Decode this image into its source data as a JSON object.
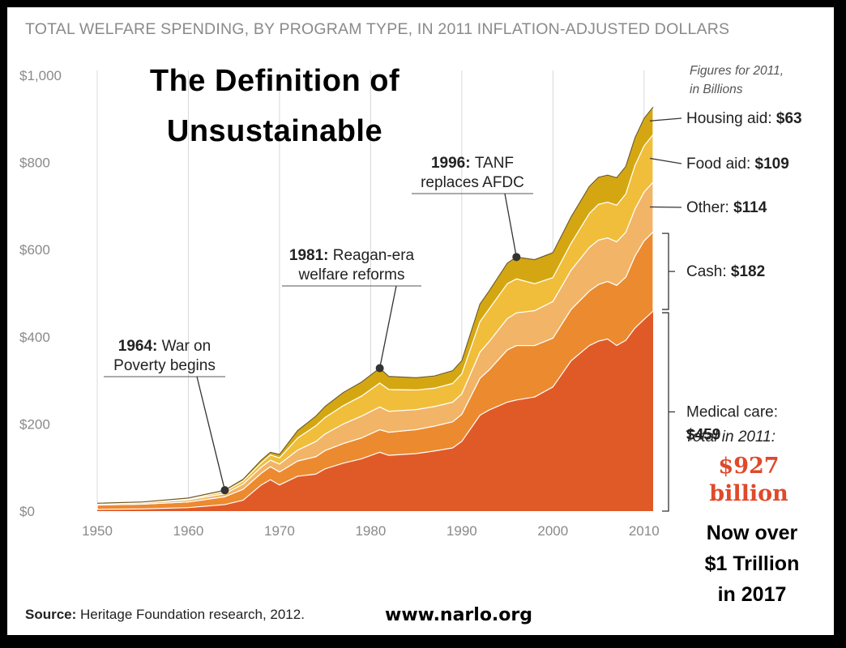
{
  "header": "TOTAL WELFARE SPENDING, BY PROGRAM TYPE, IN 2011 INFLATION-ADJUSTED DOLLARS",
  "overlay_title": [
    "The Definition of",
    "Unsustainable"
  ],
  "figures_note": [
    "Figures for 2011,",
    "in Billions"
  ],
  "total": {
    "caption": "Total in 2011:",
    "value": "$927",
    "unit": "billion"
  },
  "footnote": [
    "Now over",
    "$1 Trillion",
    "in 2017"
  ],
  "source": {
    "label": "Source:",
    "text": "Heritage Foundation research, 2012."
  },
  "website": "www.narlo.org",
  "colors": {
    "medical": "#e05a28",
    "cash": "#ec8a30",
    "other": "#f2b467",
    "food": "#f0be3a",
    "housing": "#d4a712",
    "grid": "#d8d8d8",
    "axis_text": "#8a8a8a"
  },
  "chart_data": {
    "type": "area",
    "stacked": true,
    "title": "TOTAL WELFARE SPENDING, BY PROGRAM TYPE, IN 2011 INFLATION-ADJUSTED DOLLARS",
    "xlim": [
      1950,
      2011
    ],
    "ylim": [
      0,
      1000
    ],
    "y_ticks": [
      0,
      200,
      400,
      600,
      800,
      1000
    ],
    "y_tick_labels": [
      "$0",
      "$200",
      "$400",
      "$600",
      "$800",
      "$1,000"
    ],
    "x_ticks": [
      1950,
      1960,
      1970,
      1980,
      1990,
      2000,
      2010
    ],
    "x_tick_labels": [
      "1950",
      "1960",
      "1970",
      "1980",
      "1990",
      "2000",
      "2010"
    ],
    "grid": "vertical",
    "x": [
      1950,
      1955,
      1960,
      1964,
      1966,
      1968,
      1969,
      1970,
      1972,
      1974,
      1975,
      1977,
      1979,
      1981,
      1982,
      1985,
      1987,
      1989,
      1990,
      1992,
      1993,
      1995,
      1996,
      1998,
      2000,
      2002,
      2004,
      2005,
      2006,
      2007,
      2008,
      2009,
      2010,
      2011
    ],
    "series": [
      {
        "name": "Medical care",
        "legend_value": "$459",
        "values": [
          4,
          5,
          8,
          15,
          25,
          60,
          72,
          60,
          80,
          85,
          97,
          110,
          120,
          135,
          128,
          132,
          138,
          145,
          160,
          220,
          232,
          250,
          255,
          262,
          285,
          345,
          380,
          390,
          395,
          380,
          392,
          420,
          440,
          459
        ]
      },
      {
        "name": "Cash",
        "legend_value": "$182",
        "values": [
          10,
          11,
          13,
          18,
          25,
          27,
          30,
          30,
          35,
          40,
          42,
          45,
          48,
          52,
          53,
          55,
          57,
          60,
          62,
          85,
          92,
          120,
          125,
          118,
          112,
          118,
          125,
          130,
          132,
          138,
          145,
          165,
          180,
          182
        ]
      },
      {
        "name": "Other",
        "legend_value": "$114",
        "values": [
          2,
          3,
          5,
          7,
          12,
          14,
          15,
          18,
          25,
          35,
          38,
          45,
          50,
          52,
          48,
          46,
          45,
          45,
          47,
          60,
          65,
          72,
          75,
          80,
          84,
          90,
          100,
          102,
          100,
          100,
          103,
          108,
          112,
          114
        ]
      },
      {
        "name": "Food aid",
        "legend_value": "$109",
        "values": [
          1,
          1,
          2,
          5,
          7,
          10,
          12,
          14,
          28,
          36,
          38,
          42,
          46,
          55,
          50,
          45,
          42,
          43,
          46,
          70,
          75,
          80,
          78,
          62,
          55,
          62,
          78,
          82,
          82,
          84,
          88,
          100,
          106,
          109
        ]
      },
      {
        "name": "Housing aid",
        "legend_value": "$63",
        "values": [
          1,
          1,
          2,
          3,
          4,
          6,
          6,
          8,
          17,
          22,
          25,
          30,
          32,
          34,
          30,
          28,
          28,
          29,
          30,
          40,
          41,
          47,
          50,
          55,
          57,
          60,
          62,
          62,
          62,
          63,
          63,
          63,
          63,
          63
        ]
      }
    ],
    "annotations": [
      {
        "year": 1964,
        "bold": "1964:",
        "text": [
          "War on",
          "Poverty begins"
        ]
      },
      {
        "year": 1981,
        "bold": "1981:",
        "text": [
          "Reagan-era",
          "welfare reforms"
        ]
      },
      {
        "year": 1996,
        "bold": "1996:",
        "text": [
          "TANF",
          "replaces AFDC"
        ]
      }
    ]
  }
}
